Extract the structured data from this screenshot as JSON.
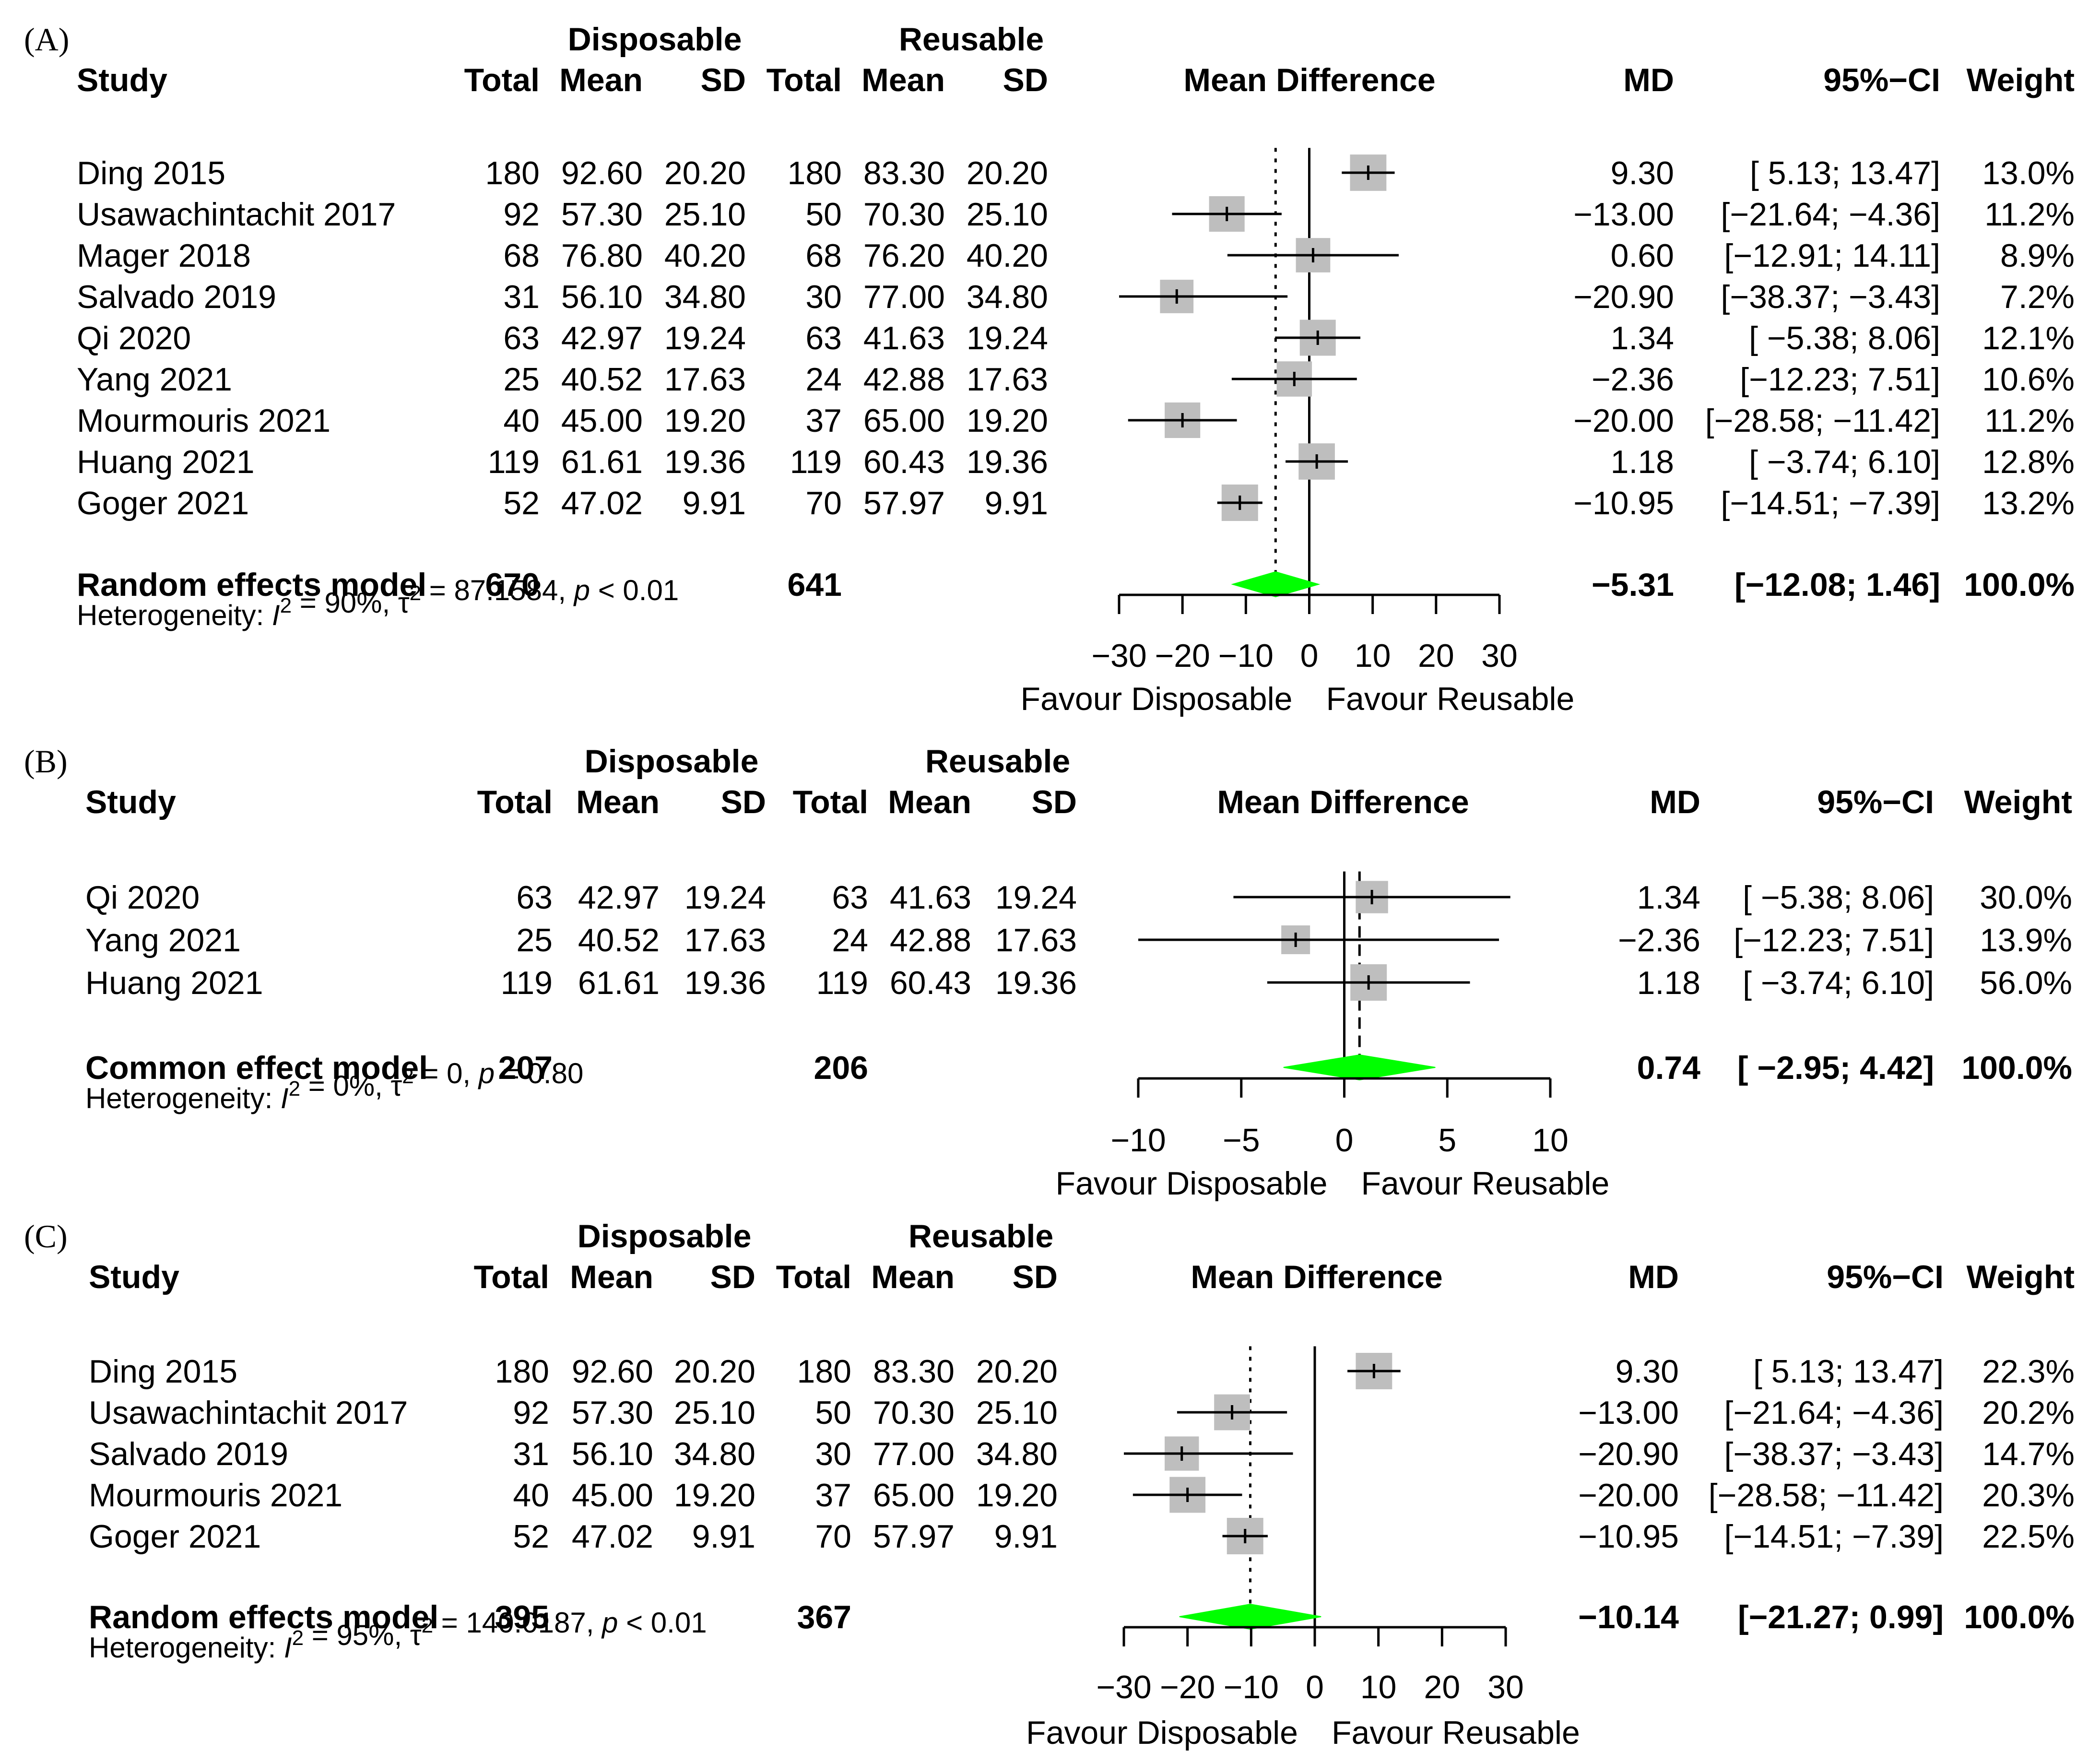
{
  "chart_data": [
    {
      "type": "forest",
      "panel_label": "(A)",
      "group_headers": {
        "experimental": "Disposable",
        "control": "Reusable"
      },
      "column_headers": {
        "study": "Study",
        "total": "Total",
        "mean": "Mean",
        "sd": "SD",
        "plot": "Mean Difference",
        "md": "MD",
        "ci": "95%−CI",
        "weight": "Weight"
      },
      "studies": [
        {
          "name": "Ding 2015",
          "total1": "180",
          "mean1": "92.60",
          "sd1": "20.20",
          "total2": "180",
          "mean2": "83.30",
          "sd2": "20.20",
          "md": 9.3,
          "lower": 5.13,
          "upper": 13.47,
          "md_text": "9.30",
          "ci_text": "[ 5.13; 13.47]",
          "weight": "13.0%",
          "weight_value": 13.0
        },
        {
          "name": "Usawachintachit 2017",
          "total1": "92",
          "mean1": "57.30",
          "sd1": "25.10",
          "total2": "50",
          "mean2": "70.30",
          "sd2": "25.10",
          "md": -13.0,
          "lower": -21.64,
          "upper": -4.36,
          "md_text": "−13.00",
          "ci_text": "[−21.64; −4.36]",
          "weight": "11.2%",
          "weight_value": 11.2
        },
        {
          "name": "Mager 2018",
          "total1": "68",
          "mean1": "76.80",
          "sd1": "40.20",
          "total2": "68",
          "mean2": "76.20",
          "sd2": "40.20",
          "md": 0.6,
          "lower": -12.91,
          "upper": 14.11,
          "md_text": "0.60",
          "ci_text": "[−12.91; 14.11]",
          "weight": "8.9%",
          "weight_value": 8.9
        },
        {
          "name": "Salvado 2019",
          "total1": "31",
          "mean1": "56.10",
          "sd1": "34.80",
          "total2": "30",
          "mean2": "77.00",
          "sd2": "34.80",
          "md": -20.9,
          "lower": -38.37,
          "upper": -3.43,
          "md_text": "−20.90",
          "ci_text": "[−38.37; −3.43]",
          "weight": "7.2%",
          "weight_value": 7.2
        },
        {
          "name": "Qi 2020",
          "total1": "63",
          "mean1": "42.97",
          "sd1": "19.24",
          "total2": "63",
          "mean2": "41.63",
          "sd2": "19.24",
          "md": 1.34,
          "lower": -5.38,
          "upper": 8.06,
          "md_text": "1.34",
          "ci_text": "[ −5.38; 8.06]",
          "weight": "12.1%",
          "weight_value": 12.1
        },
        {
          "name": "Yang 2021",
          "total1": "25",
          "mean1": "40.52",
          "sd1": "17.63",
          "total2": "24",
          "mean2": "42.88",
          "sd2": "17.63",
          "md": -2.36,
          "lower": -12.23,
          "upper": 7.51,
          "md_text": "−2.36",
          "ci_text": "[−12.23; 7.51]",
          "weight": "10.6%",
          "weight_value": 10.6
        },
        {
          "name": "Mourmouris 2021",
          "total1": "40",
          "mean1": "45.00",
          "sd1": "19.20",
          "total2": "37",
          "mean2": "65.00",
          "sd2": "19.20",
          "md": -20.0,
          "lower": -28.58,
          "upper": -11.42,
          "md_text": "−20.00",
          "ci_text": "[−28.58; −11.42]",
          "weight": "11.2%",
          "weight_value": 11.2
        },
        {
          "name": "Huang 2021",
          "total1": "119",
          "mean1": "61.61",
          "sd1": "19.36",
          "total2": "119",
          "mean2": "60.43",
          "sd2": "19.36",
          "md": 1.18,
          "lower": -3.74,
          "upper": 6.1,
          "md_text": "1.18",
          "ci_text": "[ −3.74; 6.10]",
          "weight": "12.8%",
          "weight_value": 12.8
        },
        {
          "name": "Goger 2021",
          "total1": "52",
          "mean1": "47.02",
          "sd1": "9.91",
          "total2": "70",
          "mean2": "57.97",
          "sd2": "9.91",
          "md": -10.95,
          "lower": -14.51,
          "upper": -7.39,
          "md_text": "−10.95",
          "ci_text": "[−14.51; −7.39]",
          "weight": "13.2%",
          "weight_value": 13.2
        }
      ],
      "pooled": {
        "label": "Random effects model",
        "total1": "670",
        "total2": "641",
        "md": -5.31,
        "lower": -12.08,
        "upper": 1.46,
        "md_text": "−5.31",
        "ci_text": "[−12.08; 1.46]",
        "weight": "100.0%"
      },
      "heterogeneity": {
        "prefix": "Heterogeneity: ",
        "i2_value": " = 90%, ",
        "tau2_value": " = 87.1584, ",
        "p_value": " < 0.01"
      },
      "axis": {
        "min": -30,
        "max": 30,
        "ticks": [
          -30,
          -20,
          -10,
          0,
          10,
          20,
          30
        ],
        "tick_labels": [
          "−30",
          "−20",
          "−10",
          "0",
          "10",
          "20",
          "30"
        ],
        "label_left": "Favour Disposable",
        "label_right": "Favour Reusable"
      }
    },
    {
      "type": "forest",
      "panel_label": "(B)",
      "group_headers": {
        "experimental": "Disposable",
        "control": "Reusable"
      },
      "column_headers": {
        "study": "Study",
        "total": "Total",
        "mean": "Mean",
        "sd": "SD",
        "plot": "Mean Difference",
        "md": "MD",
        "ci": "95%−CI",
        "weight": "Weight"
      },
      "studies": [
        {
          "name": "Qi 2020",
          "total1": "63",
          "mean1": "42.97",
          "sd1": "19.24",
          "total2": "63",
          "mean2": "41.63",
          "sd2": "19.24",
          "md": 1.34,
          "lower": -5.38,
          "upper": 8.06,
          "md_text": "1.34",
          "ci_text": "[ −5.38; 8.06]",
          "weight": "30.0%",
          "weight_value": 30.0
        },
        {
          "name": "Yang 2021",
          "total1": "25",
          "mean1": "40.52",
          "sd1": "17.63",
          "total2": "24",
          "mean2": "42.88",
          "sd2": "17.63",
          "md": -2.36,
          "lower": -12.23,
          "upper": 7.51,
          "md_text": "−2.36",
          "ci_text": "[−12.23; 7.51]",
          "weight": "13.9%",
          "weight_value": 13.9
        },
        {
          "name": "Huang 2021",
          "total1": "119",
          "mean1": "61.61",
          "sd1": "19.36",
          "total2": "119",
          "mean2": "60.43",
          "sd2": "19.36",
          "md": 1.18,
          "lower": -3.74,
          "upper": 6.1,
          "md_text": "1.18",
          "ci_text": "[ −3.74; 6.10]",
          "weight": "56.0%",
          "weight_value": 56.0
        }
      ],
      "pooled": {
        "label": "Common effect model",
        "total1": "207",
        "total2": "206",
        "md": 0.74,
        "lower": -2.95,
        "upper": 4.42,
        "md_text": "0.74",
        "ci_text": "[ −2.95; 4.42]",
        "weight": "100.0%"
      },
      "heterogeneity": {
        "prefix": "Heterogeneity: ",
        "i2_value": " = 0%, ",
        "tau2_value": " = 0, ",
        "p_value": " = 0.80"
      },
      "axis": {
        "min": -10,
        "max": 10,
        "ticks": [
          -10,
          -5,
          0,
          5,
          10
        ],
        "tick_labels": [
          "−10",
          "−5",
          "0",
          "5",
          "10"
        ],
        "label_left": "Favour Disposable",
        "label_right": "Favour Reusable"
      }
    },
    {
      "type": "forest",
      "panel_label": "(C)",
      "group_headers": {
        "experimental": "Disposable",
        "control": "Reusable"
      },
      "column_headers": {
        "study": "Study",
        "total": "Total",
        "mean": "Mean",
        "sd": "SD",
        "plot": "Mean Difference",
        "md": "MD",
        "ci": "95%−CI",
        "weight": "Weight"
      },
      "studies": [
        {
          "name": "Ding 2015",
          "total1": "180",
          "mean1": "92.60",
          "sd1": "20.20",
          "total2": "180",
          "mean2": "83.30",
          "sd2": "20.20",
          "md": 9.3,
          "lower": 5.13,
          "upper": 13.47,
          "md_text": "9.30",
          "ci_text": "[ 5.13; 13.47]",
          "weight": "22.3%",
          "weight_value": 22.3
        },
        {
          "name": "Usawachintachit 2017",
          "total1": "92",
          "mean1": "57.30",
          "sd1": "25.10",
          "total2": "50",
          "mean2": "70.30",
          "sd2": "25.10",
          "md": -13.0,
          "lower": -21.64,
          "upper": -4.36,
          "md_text": "−13.00",
          "ci_text": "[−21.64; −4.36]",
          "weight": "20.2%",
          "weight_value": 20.2
        },
        {
          "name": "Salvado 2019",
          "total1": "31",
          "mean1": "56.10",
          "sd1": "34.80",
          "total2": "30",
          "mean2": "77.00",
          "sd2": "34.80",
          "md": -20.9,
          "lower": -38.37,
          "upper": -3.43,
          "md_text": "−20.90",
          "ci_text": "[−38.37; −3.43]",
          "weight": "14.7%",
          "weight_value": 14.7
        },
        {
          "name": "Mourmouris 2021",
          "total1": "40",
          "mean1": "45.00",
          "sd1": "19.20",
          "total2": "37",
          "mean2": "65.00",
          "sd2": "19.20",
          "md": -20.0,
          "lower": -28.58,
          "upper": -11.42,
          "md_text": "−20.00",
          "ci_text": "[−28.58; −11.42]",
          "weight": "20.3%",
          "weight_value": 20.3
        },
        {
          "name": "Goger 2021",
          "total1": "52",
          "mean1": "47.02",
          "sd1": "9.91",
          "total2": "70",
          "mean2": "57.97",
          "sd2": "9.91",
          "md": -10.95,
          "lower": -14.51,
          "upper": -7.39,
          "md_text": "−10.95",
          "ci_text": "[−14.51; −7.39]",
          "weight": "22.5%",
          "weight_value": 22.5
        }
      ],
      "pooled": {
        "label": "Random effects model",
        "total1": "395",
        "total2": "367",
        "md": -10.14,
        "lower": -21.27,
        "upper": 0.99,
        "md_text": "−10.14",
        "ci_text": "[−21.27; 0.99]",
        "weight": "100.0%"
      },
      "heterogeneity": {
        "prefix": "Heterogeneity: ",
        "i2_value": " = 95%, ",
        "tau2_value": " = 140.0187, ",
        "p_value": " < 0.01"
      },
      "axis": {
        "min": -30,
        "max": 30,
        "ticks": [
          -30,
          -20,
          -10,
          0,
          10,
          20,
          30
        ],
        "tick_labels": [
          "−30",
          "−20",
          "−10",
          "0",
          "10",
          "20",
          "30"
        ],
        "label_left": "Favour Disposable",
        "label_right": "Favour Reusable"
      }
    }
  ],
  "colors": {
    "square": "#bebebe",
    "line": "#000000",
    "diamond": "#00ff00"
  }
}
